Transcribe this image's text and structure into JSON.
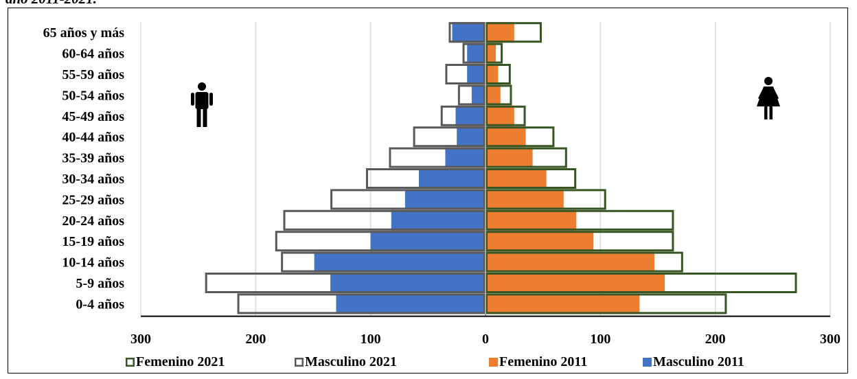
{
  "caption": "año 2011-2021.",
  "chart_data": {
    "type": "bar",
    "orientation": "horizontal",
    "stacking": "overlay",
    "categories": [
      "65 años y más",
      "60-64 años",
      "55-59 años",
      "50-54 años",
      "45-49 años",
      "40-44 años",
      "35-39 años",
      "30-34 años",
      "25-29 años",
      "20-24 años",
      "15-19 años",
      "10-14 años",
      "5-9 años",
      "0-4 años"
    ],
    "x_ticks": [
      "300",
      "200",
      "100",
      "0",
      "100",
      "200",
      "300"
    ],
    "xlim": [
      -300,
      300
    ],
    "grid": "vertical",
    "legend_position": "bottom",
    "series": [
      {
        "name": "Femenino 2021",
        "side": "right",
        "style": "outline",
        "color": "#375623",
        "values": [
          49,
          15,
          22,
          23,
          35,
          60,
          71,
          79,
          105,
          164,
          164,
          172,
          271,
          210
        ]
      },
      {
        "name": "Masculino 2021",
        "side": "left",
        "style": "outline",
        "color": "#595959",
        "values": [
          32,
          20,
          35,
          24,
          39,
          63,
          84,
          104,
          135,
          176,
          183,
          178,
          244,
          216
        ]
      },
      {
        "name": "Femenino 2011",
        "side": "right",
        "style": "fill",
        "color": "#ED7D31",
        "values": [
          25,
          9,
          11,
          13,
          25,
          35,
          41,
          53,
          68,
          79,
          94,
          147,
          156,
          134
        ]
      },
      {
        "name": "Masculino 2011",
        "side": "left",
        "style": "fill",
        "color": "#4472C4",
        "values": [
          29,
          16,
          16,
          12,
          26,
          25,
          35,
          58,
          70,
          82,
          100,
          149,
          135,
          130
        ]
      }
    ]
  },
  "icons": {
    "male": "male-person-icon",
    "female": "female-person-icon"
  }
}
